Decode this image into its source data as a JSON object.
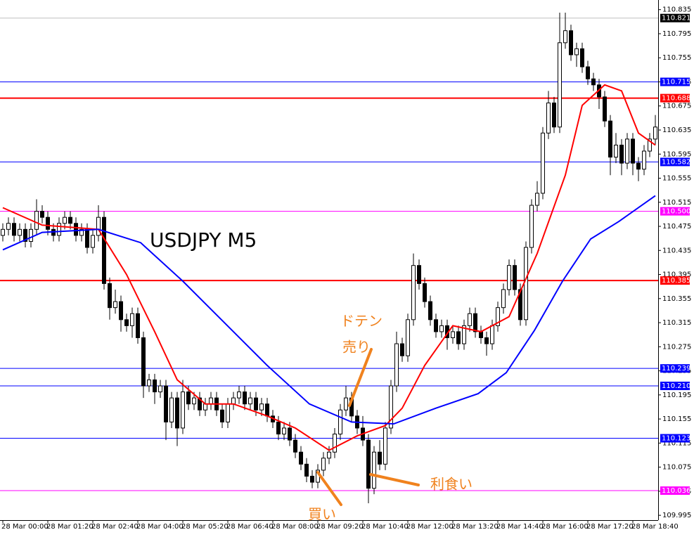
{
  "chart_data": {
    "type": "candlestick",
    "title": "USDJPY M5",
    "open": [
      110.46,
      110.47,
      110.48,
      110.46,
      110.47,
      110.45,
      110.47,
      110.5,
      110.49,
      110.47,
      110.46,
      110.48,
      110.49,
      110.48,
      110.46,
      110.47,
      110.44,
      110.46,
      110.49,
      110.38,
      110.34,
      110.35,
      110.32,
      110.31,
      110.33,
      110.29,
      110.21,
      110.22,
      110.2,
      110.21,
      110.15,
      110.19,
      110.14,
      110.2,
      110.18,
      110.19,
      110.17,
      110.18,
      110.19,
      110.17,
      110.15,
      110.18,
      110.19,
      110.2,
      110.18,
      110.19,
      110.17,
      110.18,
      110.16,
      110.15,
      110.13,
      110.14,
      110.12,
      110.1,
      110.08,
      110.06,
      110.05,
      110.07,
      110.09,
      110.1,
      110.13,
      110.17,
      110.19,
      110.16,
      110.14,
      110.12,
      110.04,
      110.1,
      110.08,
      110.14,
      110.21,
      110.28,
      110.26,
      110.32,
      110.41,
      110.38,
      110.35,
      110.32,
      110.3,
      110.31,
      110.29,
      110.3,
      110.28,
      110.31,
      110.33,
      110.3,
      110.29,
      110.28,
      110.31,
      110.34,
      110.37,
      110.41,
      110.37,
      110.32,
      110.44,
      110.51,
      110.53,
      110.63,
      110.68,
      110.64,
      110.78,
      110.8,
      110.76,
      110.77,
      110.74,
      110.72,
      110.71,
      110.69,
      110.65,
      110.59,
      110.61,
      110.58,
      110.62,
      110.58,
      110.57,
      110.6,
      110.62
    ],
    "high": [
      110.48,
      110.49,
      110.49,
      110.48,
      110.48,
      110.48,
      110.52,
      110.51,
      110.5,
      110.48,
      110.49,
      110.5,
      110.5,
      110.49,
      110.48,
      110.48,
      110.47,
      110.51,
      110.5,
      110.39,
      110.37,
      110.36,
      110.33,
      110.34,
      110.34,
      110.3,
      110.23,
      110.23,
      110.22,
      110.22,
      110.2,
      110.2,
      110.22,
      110.21,
      110.2,
      110.2,
      110.19,
      110.2,
      110.2,
      110.18,
      110.19,
      110.2,
      110.21,
      110.21,
      110.2,
      110.2,
      110.19,
      110.19,
      110.17,
      110.16,
      110.15,
      110.15,
      110.13,
      110.11,
      110.09,
      110.07,
      110.08,
      110.1,
      110.11,
      110.14,
      110.18,
      110.21,
      110.2,
      110.17,
      110.16,
      110.13,
      110.11,
      110.12,
      110.15,
      110.22,
      110.3,
      110.29,
      110.33,
      110.43,
      110.42,
      110.39,
      110.36,
      110.33,
      110.32,
      110.32,
      110.31,
      110.31,
      110.32,
      110.34,
      110.34,
      110.31,
      110.3,
      110.32,
      110.35,
      110.38,
      110.42,
      110.42,
      110.38,
      110.45,
      110.52,
      110.55,
      110.64,
      110.7,
      110.69,
      110.83,
      110.83,
      110.81,
      110.78,
      110.78,
      110.75,
      110.73,
      110.72,
      110.7,
      110.66,
      110.63,
      110.62,
      110.63,
      110.63,
      110.59,
      110.61,
      110.63,
      110.66
    ],
    "low": [
      110.45,
      110.46,
      110.45,
      110.45,
      110.44,
      110.44,
      110.46,
      110.48,
      110.46,
      110.45,
      110.45,
      110.47,
      110.47,
      110.45,
      110.45,
      110.43,
      110.43,
      110.45,
      110.37,
      110.32,
      110.33,
      110.3,
      110.3,
      110.29,
      110.28,
      110.19,
      110.2,
      110.18,
      110.19,
      110.12,
      110.14,
      110.11,
      110.13,
      110.17,
      110.17,
      110.16,
      110.16,
      110.17,
      110.16,
      110.14,
      110.14,
      110.17,
      110.18,
      110.17,
      110.17,
      110.16,
      110.16,
      110.15,
      110.14,
      110.12,
      110.12,
      110.11,
      110.09,
      110.07,
      110.05,
      110.04,
      110.04,
      110.06,
      110.08,
      110.09,
      110.12,
      110.16,
      110.15,
      110.13,
      110.11,
      110.015,
      110.03,
      110.07,
      110.07,
      110.13,
      110.2,
      110.25,
      110.25,
      110.31,
      110.37,
      110.34,
      110.31,
      110.29,
      110.29,
      110.27,
      110.28,
      110.27,
      110.27,
      110.3,
      110.29,
      110.28,
      110.26,
      110.27,
      110.3,
      110.33,
      110.36,
      110.36,
      110.31,
      110.31,
      110.43,
      110.5,
      110.52,
      110.62,
      110.63,
      110.63,
      110.77,
      110.75,
      110.74,
      110.73,
      110.71,
      110.7,
      110.67,
      110.64,
      110.56,
      110.58,
      110.56,
      110.57,
      110.56,
      110.55,
      110.56,
      110.59,
      110.61
    ],
    "close": [
      110.47,
      110.48,
      110.46,
      110.47,
      110.45,
      110.47,
      110.5,
      110.49,
      110.47,
      110.46,
      110.48,
      110.49,
      110.48,
      110.46,
      110.47,
      110.44,
      110.46,
      110.49,
      110.38,
      110.34,
      110.35,
      110.32,
      110.31,
      110.33,
      110.29,
      110.21,
      110.22,
      110.2,
      110.21,
      110.15,
      110.19,
      110.14,
      110.2,
      110.18,
      110.19,
      110.17,
      110.18,
      110.19,
      110.17,
      110.15,
      110.18,
      110.19,
      110.2,
      110.18,
      110.19,
      110.17,
      110.18,
      110.16,
      110.15,
      110.13,
      110.14,
      110.12,
      110.1,
      110.08,
      110.06,
      110.05,
      110.07,
      110.09,
      110.1,
      110.13,
      110.17,
      110.19,
      110.16,
      110.14,
      110.12,
      110.04,
      110.1,
      110.08,
      110.14,
      110.21,
      110.28,
      110.26,
      110.32,
      110.41,
      110.38,
      110.35,
      110.32,
      110.3,
      110.31,
      110.29,
      110.3,
      110.28,
      110.31,
      110.33,
      110.3,
      110.29,
      110.28,
      110.31,
      110.34,
      110.37,
      110.41,
      110.37,
      110.32,
      110.44,
      110.51,
      110.53,
      110.63,
      110.68,
      110.64,
      110.78,
      110.8,
      110.76,
      110.77,
      110.74,
      110.72,
      110.71,
      110.69,
      110.65,
      110.59,
      110.61,
      110.58,
      110.62,
      110.58,
      110.57,
      110.6,
      110.62,
      110.64
    ],
    "up_color": "#ffffff",
    "down_color": "#000000",
    "series": [
      {
        "color": "#ff0000",
        "x": [
          0,
          7,
          17,
          22,
          27,
          31,
          36,
          41,
          47,
          52,
          58,
          63,
          68,
          71,
          75,
          80,
          85,
          90,
          95,
          100,
          103,
          107,
          110,
          113,
          116
        ],
        "values": [
          110.506,
          110.477,
          110.47,
          110.395,
          110.3,
          110.22,
          110.18,
          110.18,
          110.16,
          110.14,
          110.103,
          110.127,
          110.144,
          110.173,
          110.244,
          110.31,
          110.3,
          110.325,
          110.43,
          110.56,
          110.676,
          110.71,
          110.7,
          110.63,
          110.61
        ]
      },
      {
        "color": "#0000ff",
        "x": [
          0,
          7,
          17,
          24.5,
          32,
          39.5,
          47,
          54.5,
          62,
          69.5,
          77,
          84.5,
          89.5,
          94.5,
          99.5,
          104.5,
          109.5,
          116
        ],
        "values": [
          110.436,
          110.465,
          110.47,
          110.448,
          110.384,
          110.314,
          110.244,
          110.18,
          110.15,
          110.147,
          110.173,
          110.197,
          110.232,
          110.302,
          110.384,
          110.454,
          110.483,
          110.526
        ]
      }
    ],
    "levels": [
      {
        "value": 110.821,
        "label": "110.821",
        "color": "#c0c0c0",
        "label_bg": "#000000"
      },
      {
        "value": 110.715,
        "label": "110.715",
        "color": "#0000ff",
        "label_bg": "#0000ff"
      },
      {
        "value": 110.688,
        "label": "110.688",
        "color": "#ff0000",
        "label_bg": "#ff0000"
      },
      {
        "value": 110.582,
        "label": "110.582",
        "color": "#0000ff",
        "label_bg": "#0000ff"
      },
      {
        "value": 110.5,
        "label": "110.500",
        "color": "#ff00ff",
        "label_bg": "#ff00ff"
      },
      {
        "value": 110.385,
        "label": "110.385",
        "color": "#ff0000",
        "label_bg": "#ff0000"
      },
      {
        "value": 110.239,
        "label": "110.239",
        "color": "#0000ff",
        "label_bg": "#0000ff"
      },
      {
        "value": 110.21,
        "label": "110.210",
        "color": "#0000ff",
        "label_bg": "#0000ff"
      },
      {
        "value": 110.123,
        "label": "110.123",
        "color": "#0000ff",
        "label_bg": "#0000ff"
      },
      {
        "value": 110.036,
        "label": "110.036",
        "color": "#ff00ff",
        "label_bg": "#ff00ff"
      }
    ],
    "xlim": [
      -0.5,
      116.5
    ],
    "xticks": [
      {
        "value": 0,
        "label": "28 Mar 00:00"
      },
      {
        "value": 8,
        "label": "28 Mar 01:20"
      },
      {
        "value": 16,
        "label": "28 Mar 02:40"
      },
      {
        "value": 24,
        "label": "28 Mar 04:00"
      },
      {
        "value": 32,
        "label": "28 Mar 05:20"
      },
      {
        "value": 40,
        "label": "28 Mar 06:40"
      },
      {
        "value": 48,
        "label": "28 Mar 08:00"
      },
      {
        "value": 56,
        "label": "28 Mar 09:20"
      },
      {
        "value": 64,
        "label": "28 Mar 10:40"
      },
      {
        "value": 72,
        "label": "28 Mar 12:00"
      },
      {
        "value": 80,
        "label": "28 Mar 13:20"
      },
      {
        "value": 88,
        "label": "28 Mar 14:40"
      },
      {
        "value": 96,
        "label": "28 Mar 16:00"
      },
      {
        "value": 104,
        "label": "28 Mar 17:20"
      },
      {
        "value": 112,
        "label": "28 Mar 18:40"
      }
    ],
    "ylim": [
      109.987,
      110.851
    ],
    "yticks": [
      110.835,
      110.795,
      110.755,
      110.715,
      110.675,
      110.635,
      110.595,
      110.555,
      110.515,
      110.475,
      110.435,
      110.395,
      110.355,
      110.315,
      110.275,
      110.235,
      110.195,
      110.155,
      110.115,
      110.075,
      110.035,
      109.995
    ],
    "annotations": [
      {
        "text": "ドテン"
      },
      {
        "text": "売り"
      },
      {
        "text": "買い"
      },
      {
        "text": "利食い"
      }
    ]
  }
}
